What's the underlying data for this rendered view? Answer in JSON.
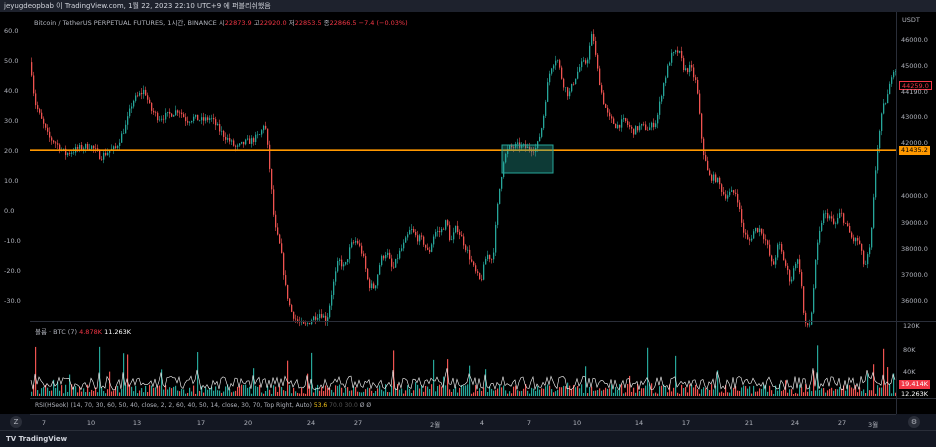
{
  "header": {
    "caption": "jeyugdeopbab 이 TradingView.com, 1월 22, 2023 22:10 UTC+9 에 퍼블리쉬했음"
  },
  "legend": {
    "symbol": "Bitcoin / TetherUS PERPETUAL FUTURES, 1시간, BINANCE",
    "open_label": "시",
    "open": "22873.9",
    "high_label": "고",
    "high": "22920.0",
    "low_label": "저",
    "low": "22853.5",
    "close_label": "종",
    "close": "22866.5",
    "change": "−7.4 (−0.03%)"
  },
  "left_axis": [
    "60.0",
    "50.0",
    "40.0",
    "30.0",
    "20.0",
    "10.0",
    "0.0",
    "-10.0",
    "-20.0",
    "-30.0"
  ],
  "right_axis": {
    "currency": "USDT",
    "labels": [
      "46000.0",
      "45000.0",
      "43000.0",
      "42000.0",
      "40000.0",
      "39000.0",
      "38000.0",
      "37000.0",
      "36000.0"
    ],
    "volume_labels": [
      "120K",
      "80K",
      "40K"
    ]
  },
  "price_tags": {
    "last": "44259.0",
    "last_sub": "44190.0",
    "level": "41435.2",
    "vol_a": "19.414K",
    "vol_b": "12.263K"
  },
  "volume_legend": {
    "name": "볼륨 · BTC (7)",
    "value_red": "4.878K",
    "value_white": "11.263K"
  },
  "rsi_legend": {
    "name": "RSI(HSeok) (14, 70, 30, 60, 50, 40, close, 2, 2, 60, 40, 50, 14, close, 30, 70, Top Right, Auto)",
    "value": "53.6",
    "dim1": "70.0",
    "dim2": "30.0",
    "tail": "Ø Ø"
  },
  "time_axis": [
    {
      "label": "7",
      "x": 14
    },
    {
      "label": "10",
      "x": 61
    },
    {
      "label": "13",
      "x": 107
    },
    {
      "label": "17",
      "x": 171
    },
    {
      "label": "20",
      "x": 218
    },
    {
      "label": "24",
      "x": 281
    },
    {
      "label": "27",
      "x": 328
    },
    {
      "label": "2월",
      "x": 405
    },
    {
      "label": "4",
      "x": 452
    },
    {
      "label": "7",
      "x": 499
    },
    {
      "label": "10",
      "x": 547
    },
    {
      "label": "14",
      "x": 609
    },
    {
      "label": "17",
      "x": 656
    },
    {
      "label": "21",
      "x": 719
    },
    {
      "label": "24",
      "x": 765
    },
    {
      "label": "27",
      "x": 812
    },
    {
      "label": "3월",
      "x": 843
    }
  ],
  "footer": {
    "brand": "TradingView"
  },
  "colors": {
    "up": "#26a69a",
    "down": "#ef5350",
    "level": "#ff9800",
    "box": "#26a69a"
  },
  "chart_data": {
    "type": "candlestick",
    "title": "Bitcoin / TetherUS PERPETUAL FUTURES, 1시간, BINANCE",
    "y_range": [
      35300,
      46400
    ],
    "level_line": 41435.2,
    "path": [
      [
        0,
        44600
      ],
      [
        4,
        43200
      ],
      [
        10,
        42600
      ],
      [
        18,
        41900
      ],
      [
        25,
        41700
      ],
      [
        35,
        41300
      ],
      [
        48,
        41500
      ],
      [
        60,
        41600
      ],
      [
        70,
        41200
      ],
      [
        78,
        41400
      ],
      [
        85,
        41500
      ],
      [
        95,
        42300
      ],
      [
        102,
        43200
      ],
      [
        108,
        43400
      ],
      [
        114,
        43600
      ],
      [
        120,
        42900
      ],
      [
        128,
        42600
      ],
      [
        138,
        42700
      ],
      [
        148,
        42900
      ],
      [
        156,
        42500
      ],
      [
        163,
        42600
      ],
      [
        172,
        42500
      ],
      [
        180,
        42600
      ],
      [
        190,
        42100
      ],
      [
        198,
        41800
      ],
      [
        206,
        41500
      ],
      [
        214,
        41700
      ],
      [
        222,
        41800
      ],
      [
        230,
        42000
      ],
      [
        234,
        42500
      ],
      [
        238,
        41200
      ],
      [
        244,
        38700
      ],
      [
        250,
        37900
      ],
      [
        255,
        36500
      ],
      [
        260,
        35700
      ],
      [
        266,
        35300
      ],
      [
        274,
        35100
      ],
      [
        282,
        35400
      ],
      [
        290,
        35600
      ],
      [
        296,
        35300
      ],
      [
        302,
        36500
      ],
      [
        308,
        37500
      ],
      [
        314,
        37200
      ],
      [
        320,
        38000
      ],
      [
        326,
        38200
      ],
      [
        332,
        37700
      ],
      [
        338,
        36600
      ],
      [
        344,
        36500
      ],
      [
        350,
        37500
      ],
      [
        356,
        37800
      ],
      [
        362,
        37100
      ],
      [
        368,
        37700
      ],
      [
        374,
        38100
      ],
      [
        380,
        38600
      ],
      [
        386,
        38300
      ],
      [
        392,
        38200
      ],
      [
        398,
        37700
      ],
      [
        404,
        38500
      ],
      [
        410,
        38500
      ],
      [
        416,
        38900
      ],
      [
        420,
        38100
      ],
      [
        426,
        38700
      ],
      [
        432,
        38200
      ],
      [
        438,
        37700
      ],
      [
        444,
        37100
      ],
      [
        450,
        36700
      ],
      [
        456,
        37700
      ],
      [
        462,
        37500
      ],
      [
        468,
        39800
      ],
      [
        473,
        41100
      ],
      [
        478,
        41500
      ],
      [
        488,
        41600
      ],
      [
        498,
        41500
      ],
      [
        506,
        41500
      ],
      [
        512,
        42400
      ],
      [
        516,
        43600
      ],
      [
        520,
        44400
      ],
      [
        526,
        44800
      ],
      [
        532,
        43900
      ],
      [
        538,
        43400
      ],
      [
        544,
        44000
      ],
      [
        550,
        44500
      ],
      [
        556,
        44600
      ],
      [
        562,
        45700
      ],
      [
        566,
        44500
      ],
      [
        572,
        43300
      ],
      [
        578,
        42600
      ],
      [
        586,
        42300
      ],
      [
        594,
        42500
      ],
      [
        602,
        42100
      ],
      [
        610,
        42300
      ],
      [
        618,
        42200
      ],
      [
        626,
        42500
      ],
      [
        632,
        43700
      ],
      [
        640,
        44800
      ],
      [
        648,
        45000
      ],
      [
        654,
        44300
      ],
      [
        660,
        44400
      ],
      [
        666,
        43800
      ],
      [
        672,
        41500
      ],
      [
        678,
        40500
      ],
      [
        686,
        40400
      ],
      [
        694,
        39800
      ],
      [
        700,
        39900
      ],
      [
        706,
        39900
      ],
      [
        712,
        38600
      ],
      [
        718,
        38100
      ],
      [
        724,
        38600
      ],
      [
        730,
        38600
      ],
      [
        736,
        38100
      ],
      [
        742,
        37200
      ],
      [
        748,
        38100
      ],
      [
        754,
        37400
      ],
      [
        760,
        36700
      ],
      [
        766,
        37600
      ],
      [
        770,
        37000
      ],
      [
        774,
        35100
      ],
      [
        780,
        35200
      ],
      [
        786,
        37800
      ],
      [
        792,
        39100
      ],
      [
        798,
        39100
      ],
      [
        804,
        38700
      ],
      [
        810,
        39200
      ],
      [
        816,
        38700
      ],
      [
        822,
        38200
      ],
      [
        828,
        38200
      ],
      [
        834,
        37200
      ],
      [
        840,
        38000
      ],
      [
        846,
        41300
      ],
      [
        852,
        42900
      ],
      [
        858,
        43500
      ],
      [
        862,
        44400
      ],
      [
        866,
        44300
      ]
    ]
  }
}
